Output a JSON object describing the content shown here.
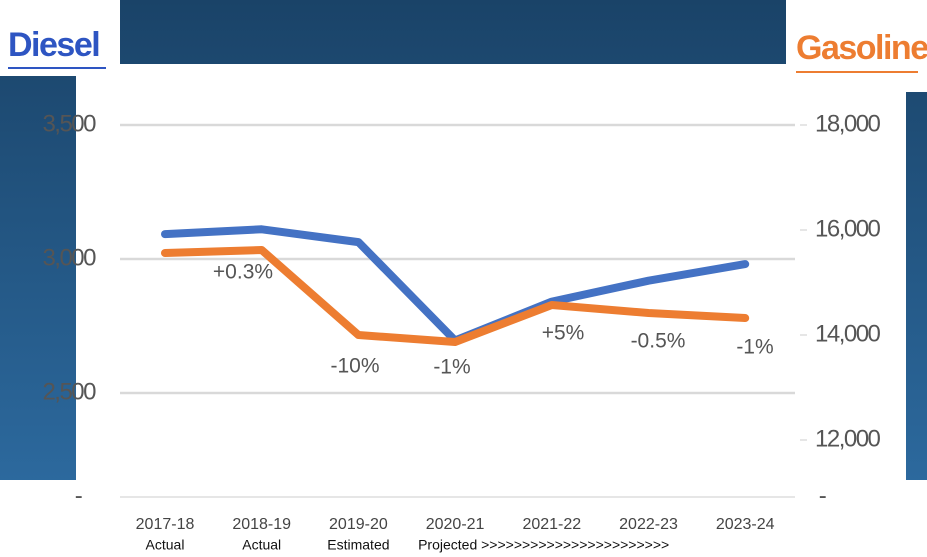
{
  "chart_data": {
    "type": "line",
    "y_title": "Diesel",
    "y2_title": "Gasoline",
    "categories": [
      "2017-18",
      "2018-19",
      "2019-20",
      "2020-21",
      "2021-22",
      "2022-23",
      "2023-24"
    ],
    "x_sublabels": [
      "Actual",
      "Actual",
      "Estimated",
      "Projected >>>>>>>>>>>>>>>>>>>>>>>"
    ],
    "series": [
      {
        "name": "Diesel",
        "color": "#4472c4",
        "values": [
          3093,
          3111,
          3063,
          2696,
          2841,
          2919,
          2981
        ]
      },
      {
        "name": "Gasoline",
        "color": "#ed7d31",
        "axis": "y2",
        "values": [
          15562,
          15619,
          14000,
          13867,
          14571,
          14419,
          14324
        ]
      }
    ],
    "annotations": [
      {
        "text": "+0.3%",
        "index": 1
      },
      {
        "text": "-10%",
        "index": 2
      },
      {
        "text": "-1%",
        "index": 3
      },
      {
        "text": "+5%",
        "index": 4
      },
      {
        "text": "-0.5%",
        "index": 5
      },
      {
        "text": "-1%",
        "index": 6
      }
    ],
    "ylim": [
      2500,
      3500
    ],
    "yticks": [
      {
        "value": 2500,
        "label": "2,500"
      },
      {
        "value": 3000,
        "label": "3,000"
      },
      {
        "value": 3500,
        "label": "3,500"
      }
    ],
    "y2lim": [
      12000,
      18000
    ],
    "y2ticks": [
      {
        "value": 12000,
        "label": "12,000"
      },
      {
        "value": 14000,
        "label": "14,000"
      },
      {
        "value": 16000,
        "label": "16,000"
      },
      {
        "value": 18000,
        "label": "18,000"
      }
    ],
    "y_floor_label": "-",
    "y2_floor_label": "-",
    "grid": true
  }
}
